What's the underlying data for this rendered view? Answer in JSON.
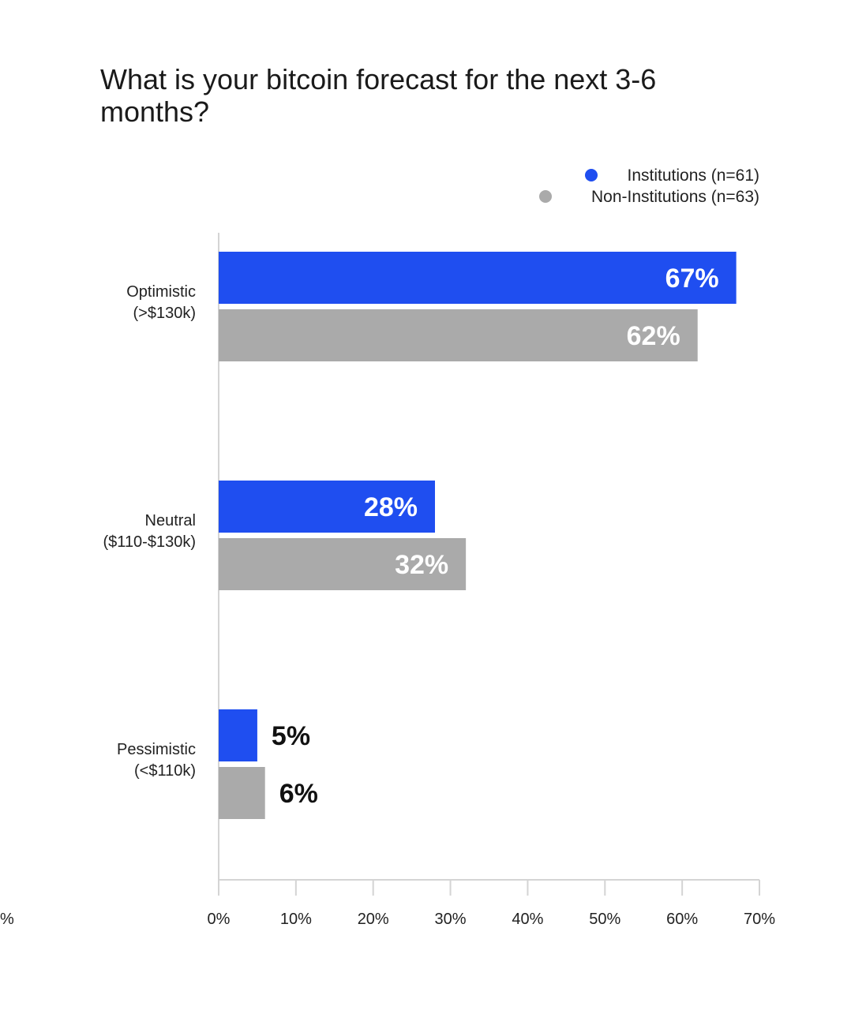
{
  "chart_data": {
    "type": "bar",
    "orientation": "horizontal",
    "title": "What is your bitcoin forecast for the next 3-6 months?",
    "categories": [
      [
        "Optimistic",
        "(>$130k)"
      ],
      [
        "Neutral",
        "($110-$130k)"
      ],
      [
        "Pessimistic",
        "(<$110k)"
      ]
    ],
    "series": [
      {
        "name": "Institutions (n=61)",
        "color": "#1f4ef0",
        "values": [
          67,
          28,
          5
        ],
        "labels": [
          "67%",
          "28%",
          "5%"
        ]
      },
      {
        "name": "Non-Institutions (n=63)",
        "color": "#aaaaaa",
        "values": [
          62,
          32,
          6
        ],
        "labels": [
          "62%",
          "32%",
          "6%"
        ]
      }
    ],
    "xlim": [
      0,
      70
    ],
    "xticks": [
      "0%",
      "10%",
      "20%",
      "30%",
      "40%",
      "50%",
      "60%",
      "70%"
    ],
    "stray_label": "%",
    "legend_position": "top-right",
    "grid": false
  }
}
